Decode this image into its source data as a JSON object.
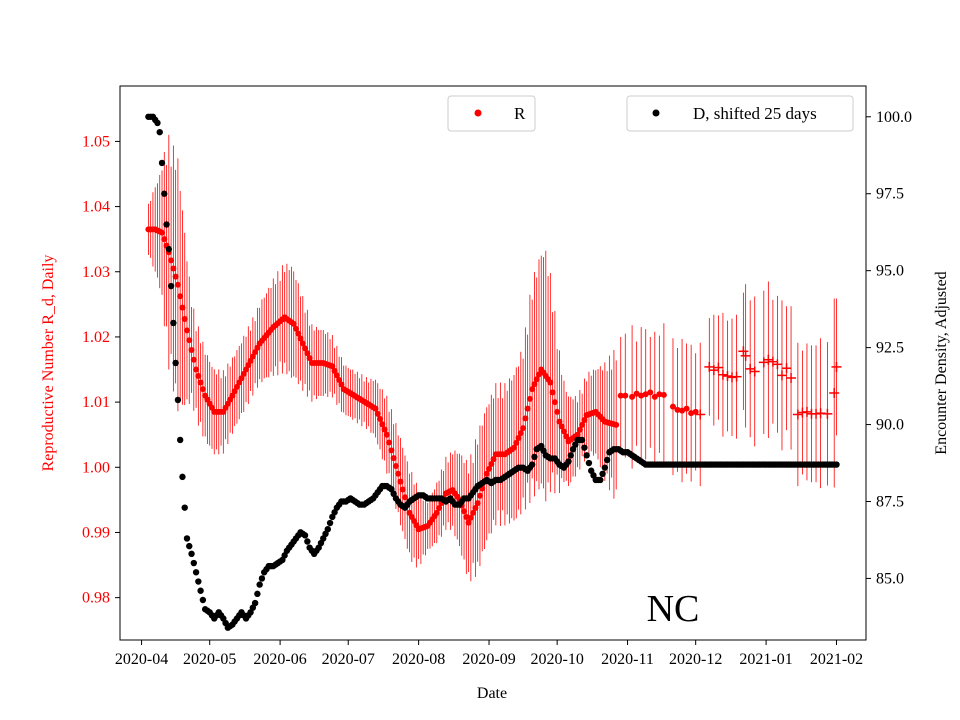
{
  "chart_data": {
    "type": "scatter",
    "state_label": "NC",
    "xlabel": "Date",
    "ylabel_left": "Reproductive Number R_d, Daily",
    "ylabel_right": "Encounter Density, Adjusted",
    "x_ticks": [
      "2020-04",
      "2020-05",
      "2020-06",
      "2020-07",
      "2020-08",
      "2020-09",
      "2020-10",
      "2020-11",
      "2020-12",
      "2021-01",
      "2021-02"
    ],
    "xlim_days": [
      -9.5,
      319
    ],
    "y_left": {
      "lim": [
        0.9735,
        1.0585
      ],
      "ticks": [
        0.98,
        0.99,
        1.0,
        1.01,
        1.02,
        1.03,
        1.04,
        1.05
      ],
      "tick_labels": [
        "0.98",
        "0.99",
        "1.00",
        "1.01",
        "1.02",
        "1.03",
        "1.04",
        "1.05"
      ],
      "color": "#ff0000"
    },
    "y_right": {
      "lim": [
        83.0,
        101.0
      ],
      "ticks": [
        85.0,
        87.5,
        90.0,
        92.5,
        95.0,
        97.5,
        100.0
      ],
      "tick_labels": [
        "85.0",
        "87.5",
        "90.0",
        "92.5",
        "95.0",
        "97.5",
        "100.0"
      ]
    },
    "series": [
      {
        "name": "R",
        "color": "#ff0000",
        "axis": "left",
        "smooth_knots": [
          [
            3,
            1.0365
          ],
          [
            6,
            1.0365
          ],
          [
            9,
            1.036
          ],
          [
            12,
            1.033
          ],
          [
            16,
            1.028
          ],
          [
            20,
            1.021
          ],
          [
            24,
            1.015
          ],
          [
            28,
            1.011
          ],
          [
            32,
            1.0085
          ],
          [
            36,
            1.0085
          ],
          [
            40,
            1.011
          ],
          [
            46,
            1.015
          ],
          [
            52,
            1.019
          ],
          [
            58,
            1.0215
          ],
          [
            63,
            1.023
          ],
          [
            67,
            1.022
          ],
          [
            71,
            1.019
          ],
          [
            75,
            1.016
          ],
          [
            80,
            1.016
          ],
          [
            84,
            1.0155
          ],
          [
            89,
            1.012
          ],
          [
            96,
            1.0105
          ],
          [
            103,
            1.009
          ],
          [
            108,
            1.005
          ],
          [
            113,
            0.999
          ],
          [
            118,
            0.993
          ],
          [
            122,
            0.9905
          ],
          [
            126,
            0.991
          ],
          [
            130,
            0.993
          ],
          [
            134,
            0.996
          ],
          [
            137,
            0.9965
          ],
          [
            140,
            0.995
          ],
          [
            144,
            0.9915
          ],
          [
            148,
            0.9945
          ],
          [
            152,
            0.999
          ],
          [
            156,
            1.002
          ],
          [
            160,
            1.002
          ],
          [
            164,
            1.003
          ],
          [
            168,
            1.006
          ],
          [
            172,
            1.012
          ],
          [
            176,
            1.015
          ],
          [
            180,
            1.013
          ],
          [
            184,
            1.007
          ],
          [
            188,
            1.004
          ],
          [
            192,
            1.005
          ],
          [
            196,
            1.008
          ],
          [
            200,
            1.0085
          ],
          [
            204,
            1.007
          ],
          [
            209,
            1.0065
          ]
        ],
        "smooth_range_days": [
          3,
          209
        ],
        "error_amp_knots": [
          [
            3,
            0.004
          ],
          [
            8,
            0.009
          ],
          [
            12,
            0.018
          ],
          [
            16,
            0.02
          ],
          [
            22,
            0.008
          ],
          [
            30,
            0.007
          ],
          [
            40,
            0.006
          ],
          [
            50,
            0.006
          ],
          [
            60,
            0.008
          ],
          [
            66,
            0.009
          ],
          [
            75,
            0.006
          ],
          [
            90,
            0.004
          ],
          [
            100,
            0.004
          ],
          [
            108,
            0.006
          ],
          [
            114,
            0.007
          ],
          [
            120,
            0.007
          ],
          [
            126,
            0.004
          ],
          [
            136,
            0.006
          ],
          [
            148,
            0.011
          ],
          [
            160,
            0.011
          ],
          [
            168,
            0.013
          ],
          [
            172,
            0.017
          ],
          [
            178,
            0.02
          ],
          [
            186,
            0.008
          ],
          [
            192,
            0.006
          ],
          [
            200,
            0.007
          ],
          [
            209,
            0.012
          ]
        ],
        "scattered_points": [
          [
            211,
            1.011
          ],
          [
            213,
            1.011
          ],
          [
            216,
            1.0108
          ],
          [
            218,
            1.0113
          ],
          [
            220,
            1.011
          ],
          [
            222,
            1.0112
          ],
          [
            224,
            1.0115
          ],
          [
            226,
            1.0108
          ],
          [
            228,
            1.0112
          ],
          [
            230,
            1.0111
          ],
          [
            234,
            1.0093
          ],
          [
            236,
            1.0088
          ],
          [
            238,
            1.0087
          ],
          [
            240,
            1.009
          ],
          [
            242,
            1.0083
          ],
          [
            244,
            1.0085
          ],
          [
            246,
            1.0081
          ],
          [
            250,
            1.0154
          ],
          [
            252,
            1.0149
          ],
          [
            254,
            1.0153
          ],
          [
            256,
            1.0142
          ],
          [
            258,
            1.014
          ],
          [
            260,
            1.0138
          ],
          [
            262,
            1.0139
          ],
          [
            265,
            1.0178
          ],
          [
            266,
            1.0171
          ],
          [
            268,
            1.0151
          ],
          [
            270,
            1.0147
          ],
          [
            274,
            1.0161
          ],
          [
            276,
            1.0165
          ],
          [
            278,
            1.0162
          ],
          [
            280,
            1.0158
          ],
          [
            282,
            1.0141
          ],
          [
            284,
            1.0152
          ],
          [
            286,
            1.0137
          ],
          [
            289,
            1.0081
          ],
          [
            291,
            1.0084
          ],
          [
            293,
            1.0085
          ],
          [
            295,
            1.0082
          ],
          [
            297,
            1.0082
          ],
          [
            299,
            1.0083
          ],
          [
            302,
            1.0082
          ],
          [
            305,
            1.0114
          ],
          [
            306,
            1.0154
          ]
        ],
        "scattered_errors": [
          [
            211,
            0.009
          ],
          [
            213,
            0.0095
          ],
          [
            216,
            0.011
          ],
          [
            218,
            0.008
          ],
          [
            220,
            0.0105
          ],
          [
            222,
            0.01
          ],
          [
            224,
            0.0085
          ],
          [
            226,
            0.01
          ],
          [
            228,
            0.009
          ],
          [
            230,
            0.011
          ],
          [
            234,
            0.0105
          ],
          [
            236,
            0.0095
          ],
          [
            238,
            0.011
          ],
          [
            240,
            0.01
          ],
          [
            242,
            0.0105
          ],
          [
            244,
            0.009
          ],
          [
            246,
            0.011
          ],
          [
            250,
            0.0075
          ],
          [
            252,
            0.0085
          ],
          [
            254,
            0.008
          ],
          [
            256,
            0.0095
          ],
          [
            258,
            0.0085
          ],
          [
            260,
            0.009
          ],
          [
            262,
            0.0095
          ],
          [
            265,
            0.009
          ],
          [
            266,
            0.011
          ],
          [
            268,
            0.0105
          ],
          [
            270,
            0.0115
          ],
          [
            274,
            0.011
          ],
          [
            276,
            0.012
          ],
          [
            278,
            0.0095
          ],
          [
            280,
            0.0105
          ],
          [
            282,
            0.0115
          ],
          [
            284,
            0.0095
          ],
          [
            286,
            0.011
          ],
          [
            289,
            0.011
          ],
          [
            291,
            0.0095
          ],
          [
            293,
            0.0105
          ],
          [
            295,
            0.0105
          ],
          [
            297,
            0.0105
          ],
          [
            299,
            0.0115
          ],
          [
            302,
            0.011
          ],
          [
            305,
            0.0145
          ],
          [
            306,
            0.0105
          ]
        ],
        "cross_markers_from_day": 246
      },
      {
        "name": "D, shifted 25 days",
        "color": "#000000",
        "axis": "right",
        "knots": [
          [
            3,
            100.0
          ],
          [
            5,
            100.0
          ],
          [
            7,
            99.8
          ],
          [
            8,
            99.5
          ],
          [
            9,
            98.5
          ],
          [
            10,
            97.5
          ],
          [
            11,
            96.5
          ],
          [
            12,
            95.7
          ],
          [
            13,
            94.5
          ],
          [
            14,
            93.3
          ],
          [
            15,
            92.0
          ],
          [
            16,
            90.8
          ],
          [
            17,
            89.5
          ],
          [
            18,
            88.3
          ],
          [
            19,
            87.3
          ],
          [
            20,
            86.3
          ],
          [
            22,
            85.8
          ],
          [
            24,
            85.2
          ],
          [
            26,
            84.6
          ],
          [
            28,
            84.0
          ],
          [
            30,
            83.9
          ],
          [
            32,
            83.7
          ],
          [
            34,
            83.9
          ],
          [
            36,
            83.7
          ],
          [
            38,
            83.4
          ],
          [
            40,
            83.5
          ],
          [
            42,
            83.7
          ],
          [
            44,
            83.9
          ],
          [
            46,
            83.7
          ],
          [
            48,
            83.9
          ],
          [
            50,
            84.2
          ],
          [
            52,
            84.8
          ],
          [
            54,
            85.2
          ],
          [
            56,
            85.4
          ],
          [
            58,
            85.4
          ],
          [
            60,
            85.5
          ],
          [
            62,
            85.6
          ],
          [
            64,
            85.9
          ],
          [
            66,
            86.1
          ],
          [
            68,
            86.3
          ],
          [
            70,
            86.5
          ],
          [
            72,
            86.4
          ],
          [
            74,
            86.0
          ],
          [
            76,
            85.8
          ],
          [
            78,
            86.0
          ],
          [
            80,
            86.3
          ],
          [
            82,
            86.6
          ],
          [
            84,
            87.0
          ],
          [
            86,
            87.3
          ],
          [
            88,
            87.5
          ],
          [
            90,
            87.5
          ],
          [
            92,
            87.6
          ],
          [
            94,
            87.5
          ],
          [
            96,
            87.4
          ],
          [
            98,
            87.4
          ],
          [
            100,
            87.5
          ],
          [
            102,
            87.6
          ],
          [
            104,
            87.8
          ],
          [
            106,
            88.0
          ],
          [
            108,
            88.0
          ],
          [
            110,
            87.9
          ],
          [
            112,
            87.6
          ],
          [
            114,
            87.4
          ],
          [
            116,
            87.3
          ],
          [
            118,
            87.5
          ],
          [
            120,
            87.6
          ],
          [
            122,
            87.7
          ],
          [
            124,
            87.7
          ],
          [
            126,
            87.6
          ],
          [
            128,
            87.6
          ],
          [
            130,
            87.6
          ],
          [
            132,
            87.6
          ],
          [
            134,
            87.5
          ],
          [
            136,
            87.6
          ],
          [
            138,
            87.4
          ],
          [
            140,
            87.4
          ],
          [
            142,
            87.6
          ],
          [
            144,
            87.6
          ],
          [
            146,
            87.8
          ],
          [
            148,
            88.0
          ],
          [
            150,
            88.1
          ],
          [
            152,
            88.2
          ],
          [
            154,
            88.1
          ],
          [
            156,
            88.2
          ],
          [
            158,
            88.2
          ],
          [
            160,
            88.3
          ],
          [
            162,
            88.4
          ],
          [
            164,
            88.5
          ],
          [
            166,
            88.6
          ],
          [
            168,
            88.6
          ],
          [
            170,
            88.5
          ],
          [
            172,
            88.7
          ],
          [
            174,
            89.2
          ],
          [
            176,
            89.3
          ],
          [
            178,
            89.0
          ],
          [
            180,
            88.9
          ],
          [
            182,
            88.9
          ],
          [
            184,
            88.7
          ],
          [
            186,
            88.6
          ],
          [
            188,
            88.8
          ],
          [
            190,
            89.2
          ],
          [
            192,
            89.5
          ],
          [
            194,
            89.5
          ],
          [
            196,
            89.0
          ],
          [
            198,
            88.5
          ],
          [
            200,
            88.2
          ],
          [
            202,
            88.2
          ],
          [
            204,
            88.6
          ],
          [
            206,
            89.1
          ],
          [
            208,
            89.2
          ],
          [
            210,
            89.2
          ],
          [
            212,
            89.1
          ],
          [
            214,
            89.1
          ],
          [
            216,
            89.0
          ],
          [
            218,
            88.9
          ],
          [
            220,
            88.8
          ],
          [
            222,
            88.7
          ],
          [
            224,
            88.7
          ],
          [
            226,
            88.7
          ],
          [
            230,
            88.7
          ],
          [
            240,
            88.7
          ],
          [
            260,
            88.7
          ],
          [
            280,
            88.7
          ],
          [
            300,
            88.7
          ],
          [
            306,
            88.7
          ]
        ]
      }
    ]
  }
}
